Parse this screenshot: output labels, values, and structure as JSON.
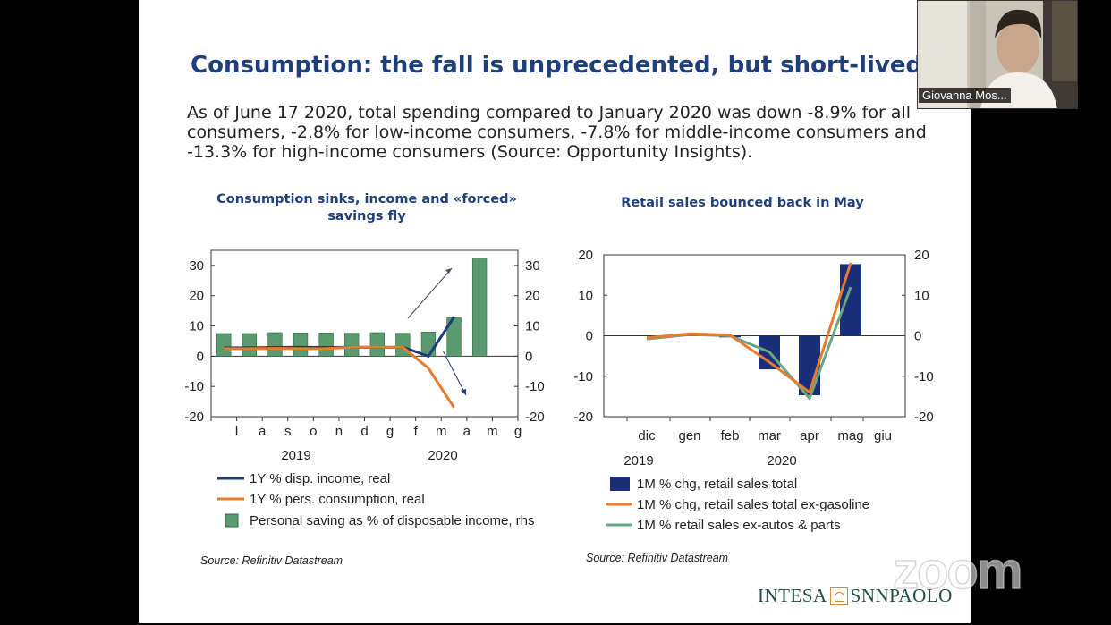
{
  "slide": {
    "title": "Consumption: the fall is unprecedented, but short-lived",
    "body": "As of June 17 2020, total spending compared to January 2020 was down -8.9% for all consumers, -2.8% for low-income consumers, -7.8% for middle-income consumers and -13.3% for high-income consumers (Source: Opportunity Insights).",
    "logo_left": "INTESA",
    "logo_right": "SNNPAOLO"
  },
  "video": {
    "participant_name": "Giovanna Mos...",
    "watermark": "zoom"
  },
  "colors": {
    "title_blue": "#1e3f7a",
    "navy_line": "#1f3b7a",
    "orange_line": "#e87b2c",
    "green_bar": "#5a9a6e",
    "green_line": "#6aa684",
    "navy_bar": "#1a2f7a"
  },
  "chart_data": [
    {
      "type": "bar",
      "title": "Consumption sinks, income and «forced» savings fly",
      "x_tick_labels": [
        "l",
        "a",
        "s",
        "o",
        "n",
        "d",
        "g",
        "f",
        "m",
        "a",
        "m",
        "g"
      ],
      "year_labels": [
        "2019",
        "2020"
      ],
      "categories": [
        "jul-19",
        "aug-19",
        "sep-19",
        "oct-19",
        "nov-19",
        "dec-19",
        "jan-20",
        "feb-20",
        "mar-20",
        "apr-20",
        "may-20",
        "jun-20"
      ],
      "y_ticks_left": [
        "30",
        "20",
        "10",
        "0",
        "-10",
        "-20"
      ],
      "y_ticks_right": [
        "30",
        "20",
        "10",
        "0",
        "-10",
        "-20"
      ],
      "ylim": [
        -20,
        35
      ],
      "series": [
        {
          "name": "1Y % disp. income, real",
          "kind": "line",
          "values": [
            2.8,
            2.8,
            2.9,
            3.0,
            2.9,
            3.0,
            2.9,
            3.0,
            0.0,
            13.0,
            null,
            null
          ]
        },
        {
          "name": "1Y % pers. consumption, real",
          "kind": "line",
          "values": [
            2.5,
            2.5,
            2.6,
            2.5,
            2.5,
            3.0,
            3.0,
            3.0,
            -4.0,
            -17.0,
            null,
            null
          ]
        },
        {
          "name": "Personal saving as % of disposable income, rhs",
          "kind": "bar",
          "values": [
            7.5,
            7.5,
            7.8,
            7.7,
            7.7,
            7.6,
            7.8,
            7.6,
            8.0,
            12.8,
            32.5,
            null
          ]
        }
      ],
      "source": "Source: Refinitiv Datastream"
    },
    {
      "type": "bar",
      "title": "Retail sales bounced back in May",
      "x_tick_labels": [
        "dic",
        "gen",
        "feb",
        "mar",
        "apr",
        "mag",
        "giu"
      ],
      "year_labels": [
        "2019",
        "2020"
      ],
      "y_ticks_left": [
        "20",
        "10",
        "0",
        "-10",
        "-20"
      ],
      "y_ticks_right": [
        "20",
        "10",
        "0",
        "-10",
        "-20"
      ],
      "ylim": [
        -20,
        20
      ],
      "series": [
        {
          "name": "1M % chg, retail sales total",
          "kind": "bar",
          "values": [
            null,
            0.2,
            -0.4,
            -8.3,
            -14.7,
            17.7,
            null
          ]
        },
        {
          "name": "1M % chg, retail sales total ex-gasoline",
          "kind": "line",
          "values": [
            -0.5,
            0.5,
            0.2,
            -6.5,
            -14.0,
            18.0,
            null
          ]
        },
        {
          "name": "1M % retail sales ex-autos & parts",
          "kind": "line",
          "values": [
            -0.8,
            0.3,
            0.0,
            -4.0,
            -15.5,
            12.0,
            null
          ]
        }
      ],
      "source": "Source: Refinitiv Datastream"
    }
  ]
}
